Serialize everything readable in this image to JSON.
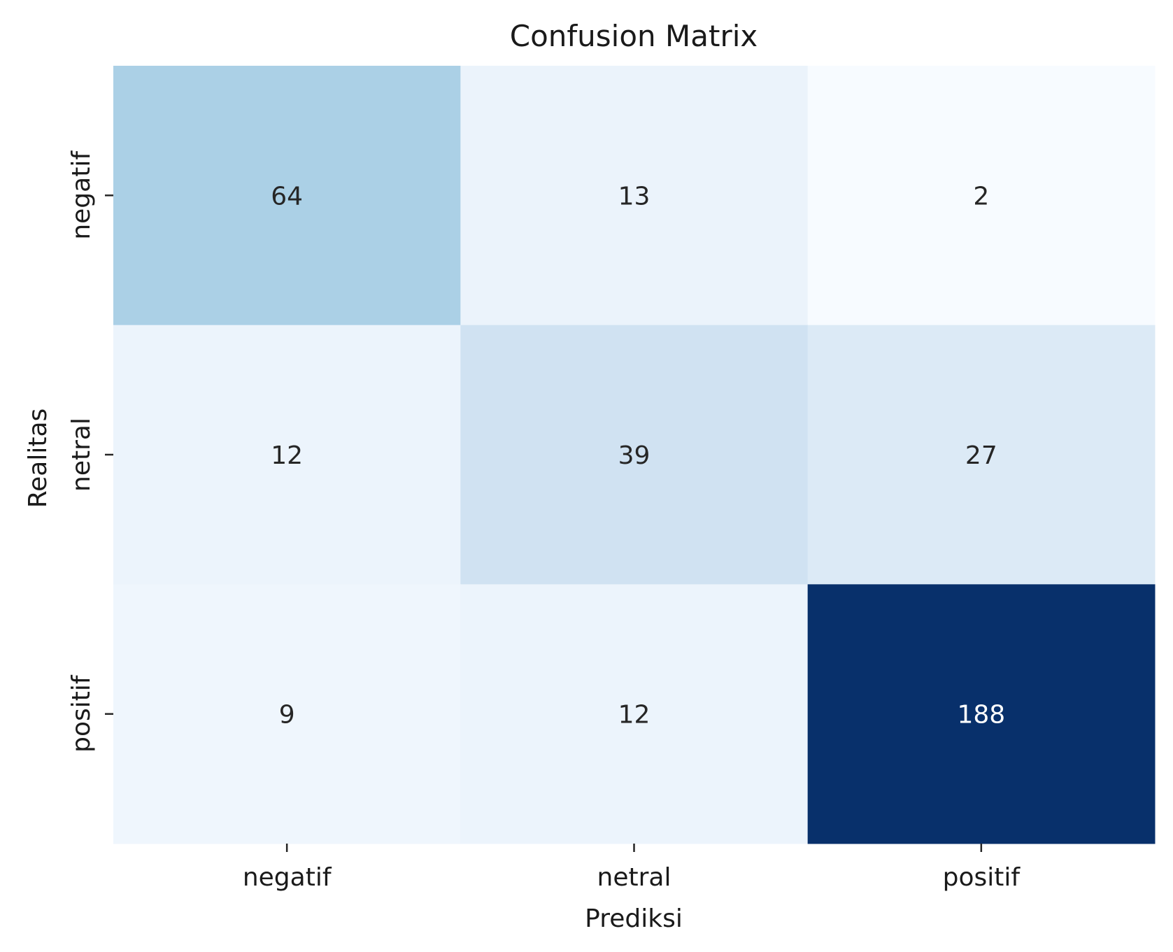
{
  "chart_data": {
    "type": "heatmap",
    "title": "Confusion Matrix",
    "xlabel": "Prediksi",
    "ylabel": "Realitas",
    "x_categories": [
      "negatif",
      "netral",
      "positif"
    ],
    "y_categories": [
      "negatif",
      "netral",
      "positif"
    ],
    "values": [
      [
        64,
        13,
        2
      ],
      [
        12,
        39,
        27
      ],
      [
        9,
        12,
        188
      ]
    ],
    "colormap": "Blues",
    "colorbar": false,
    "annotations": true,
    "annotation_dark_color": "#262626",
    "annotation_light_color": "#ffffff"
  }
}
